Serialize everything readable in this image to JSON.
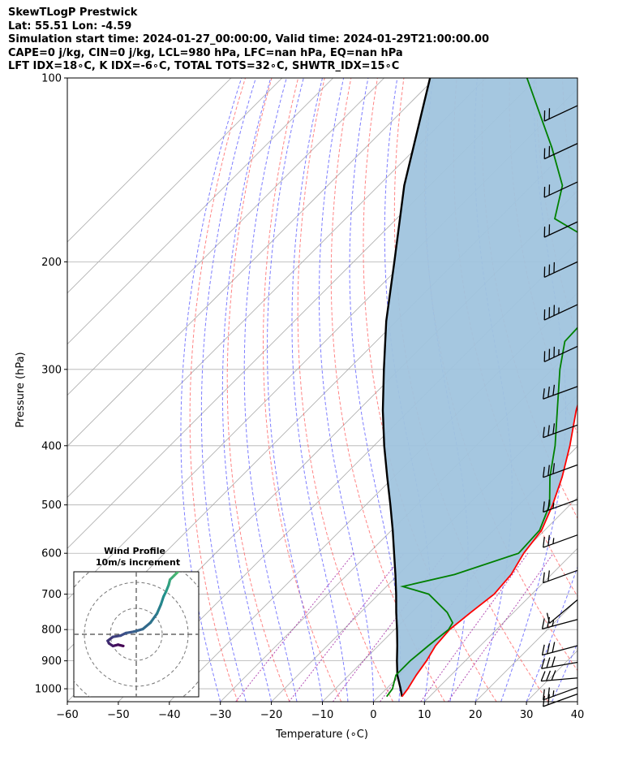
{
  "header": {
    "line1": "SkewTLogP Prestwick",
    "line2": "Lat: 55.51   Lon: -4.59",
    "line3": "Simulation start time: 2024-01-27_00:00:00, Valid time: 2024-01-29T21:00:00.00",
    "line4": "CAPE=0 j/kg, CIN=0 j/kg, LCL=980 hPa, LFC=nan hPa, EQ=nan hPa",
    "line5": "LFT IDX=18∘C, K IDX=-6∘C, TOTAL TOTS=32∘C, SHWTR_IDX=15∘C"
  },
  "chart_data": {
    "type": "line",
    "title": "SkewTLogP Prestwick",
    "xlabel": "Temperature (∘C)",
    "ylabel": "Pressure (hPa)",
    "xlim": [
      -60,
      40
    ],
    "ylim": [
      1050,
      100
    ],
    "yscale": "log",
    "x_ticks": [
      -60,
      -50,
      -40,
      -30,
      -20,
      -10,
      0,
      10,
      20,
      30,
      40
    ],
    "x_tick_labels": [
      "−60",
      "−50",
      "−40",
      "−30",
      "−20",
      "−10",
      "0",
      "10",
      "20",
      "30",
      "40"
    ],
    "y_ticks": [
      1000,
      900,
      800,
      700,
      600,
      500,
      400,
      300,
      200,
      100
    ],
    "y_tick_labels": [
      "1000",
      "900",
      "800",
      "700",
      "600",
      "500",
      "400",
      "300",
      "200",
      "100"
    ],
    "grid": true,
    "colors": {
      "temperature": "#ff0000",
      "dewpoint": "#008000",
      "parcel": "#000000",
      "cape_cin_fill": "#a0c4de",
      "dry_adiabats": "#ff6666",
      "moist_adiabats": "#6666ff",
      "isotherms": "#aaaaaa",
      "mixing_ratio": "#a020a0"
    },
    "series": [
      {
        "key": "temperature",
        "pressure": [
          1030,
          1000,
          950,
          900,
          850,
          800,
          750,
          700,
          650,
          600,
          550,
          500,
          450,
          400,
          350,
          300,
          275,
          250,
          235,
          220,
          200,
          185,
          170,
          160,
          150,
          130,
          115,
          100
        ],
        "values": [
          4.6,
          4.2,
          3.2,
          2.4,
          1.2,
          0.8,
          1.6,
          2.6,
          2.1,
          0.4,
          -0.6,
          -3.4,
          -7.0,
          -11.6,
          -17.3,
          -23.0,
          -26.8,
          -31.2,
          -32.8,
          -33.3,
          -34.2,
          -37.7,
          -42.0,
          -45.5,
          -50.0,
          -58.5,
          -66.5,
          -77.5
        ]
      },
      {
        "key": "dewpoint",
        "pressure": [
          1030,
          1000,
          950,
          900,
          850,
          800,
          780,
          750,
          700,
          680,
          650,
          600,
          550,
          500,
          450,
          400,
          350,
          300,
          270,
          250,
          230,
          210,
          200,
          180,
          170,
          150,
          130,
          100
        ],
        "values": [
          1.6,
          1.2,
          -0.8,
          -0.8,
          -0.2,
          0.6,
          0.1,
          -3.0,
          -10.2,
          -16.8,
          -9.0,
          -0.6,
          -1.0,
          -4.0,
          -9.4,
          -14.5,
          -21.0,
          -28.5,
          -33.0,
          -33.3,
          -36.4,
          -40.5,
          -43.5,
          -51.0,
          -59.0,
          -64.0,
          -73.5,
          -92.0
        ]
      },
      {
        "key": "parcel",
        "pressure": [
          1030,
          1000,
          950,
          900,
          850,
          800,
          750,
          700,
          650,
          600,
          550,
          500,
          450,
          400,
          350,
          300,
          250,
          200,
          150,
          100
        ],
        "values": [
          4.6,
          2.8,
          -0.5,
          -3.4,
          -6.3,
          -9.5,
          -13.0,
          -16.6,
          -20.6,
          -25.0,
          -29.8,
          -35.2,
          -41.3,
          -48.0,
          -55.2,
          -63.0,
          -72.0,
          -82.0,
          -95.0,
          -111.0
        ]
      }
    ],
    "wind_barbs": {
      "pressure": [
        1020,
        995,
        960,
        905,
        850,
        770,
        715,
        640,
        560,
        490,
        430,
        370,
        320,
        275,
        235,
        200,
        172,
        148,
        128,
        111
      ],
      "speed_kt": [
        20,
        25,
        30,
        30,
        30,
        25,
        10,
        20,
        25,
        25,
        30,
        30,
        30,
        35,
        35,
        30,
        20,
        20,
        20,
        20
      ],
      "direction_deg": [
        250,
        250,
        265,
        260,
        255,
        255,
        230,
        250,
        250,
        250,
        250,
        250,
        250,
        245,
        245,
        245,
        245,
        245,
        245,
        245
      ]
    }
  },
  "hodograph": {
    "title_line1": "Wind Profile",
    "title_line2": "10m/s increment",
    "ring_increment_ms": 10,
    "u": [
      -5.0,
      -7.0,
      -9.0,
      -10.5,
      -11.0,
      -9.0,
      -6.0,
      -4.0,
      -1.0,
      2.5,
      5.5,
      8.0,
      9.5,
      10.5,
      11.5,
      12.5,
      13.0,
      14.5,
      16.0,
      16.5,
      16.0,
      15.0,
      14.5,
      15.0,
      15.5,
      16.5,
      16.0,
      15.0
    ],
    "v": [
      -4.5,
      -4.0,
      -4.5,
      -3.5,
      -2.5,
      -1.0,
      -0.5,
      0.5,
      1.0,
      2.0,
      4.5,
      8.0,
      11.5,
      14.5,
      16.5,
      19.0,
      21.0,
      22.5,
      24.0,
      28.0,
      31.0,
      34.0,
      37.0,
      38.0,
      36.5,
      31.0,
      28.5,
      27.5
    ]
  }
}
